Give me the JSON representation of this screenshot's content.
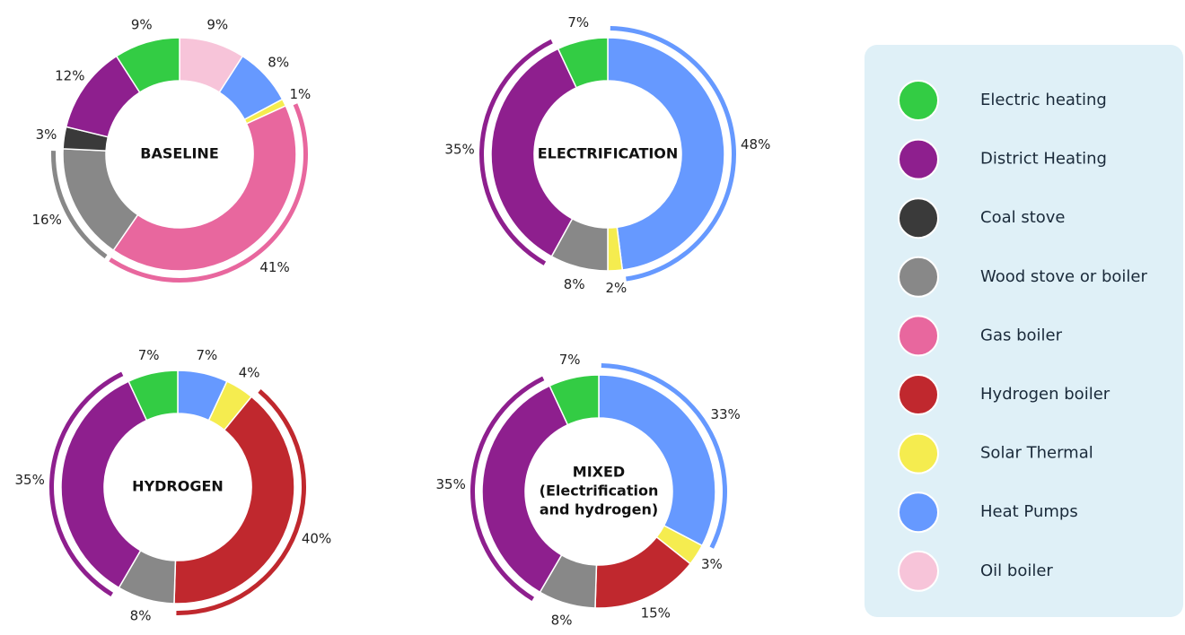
{
  "chart_data": [
    {
      "type": "pie",
      "title_lines": [
        "BASELINE"
      ],
      "categories": [
        "Oil boiler",
        "Heat Pumps",
        "Solar Thermal",
        "Gas boiler",
        "Wood stove or boiler",
        "Coal stove",
        "District Heating",
        "Electric heating"
      ],
      "values": [
        9,
        8,
        1,
        41,
        16,
        3,
        12,
        9
      ],
      "value_labels": [
        "9%",
        "8%",
        "1%",
        "41%",
        "16%",
        "3%",
        "12%",
        "9%"
      ],
      "colors": [
        "#f7c4d9",
        "#6699ff",
        "#f5ec4f",
        "#e8679e",
        "#888888",
        "#3a3a3a",
        "#8e1f8e",
        "#33cc44"
      ],
      "highlight": [
        "Gas boiler",
        "Wood stove or boiler"
      ]
    },
    {
      "type": "pie",
      "title_lines": [
        "ELECTRIFICATION"
      ],
      "categories": [
        "Heat Pumps",
        "Solar Thermal",
        "Wood stove or boiler",
        "District Heating",
        "Electric heating"
      ],
      "values": [
        48,
        2,
        8,
        35,
        7
      ],
      "value_labels": [
        "48%",
        "2%",
        "8%",
        "35%",
        "7%"
      ],
      "colors": [
        "#6699ff",
        "#f5ec4f",
        "#888888",
        "#8e1f8e",
        "#33cc44"
      ],
      "highlight": [
        "Heat Pumps",
        "District Heating"
      ]
    },
    {
      "type": "pie",
      "title_lines": [
        "HYDROGEN"
      ],
      "categories": [
        "Heat Pumps",
        "Solar Thermal",
        "Hydrogen boiler",
        "Wood stove or boiler",
        "District Heating",
        "Electric heating"
      ],
      "values": [
        7,
        4,
        40,
        8,
        35,
        7
      ],
      "value_labels": [
        "7%",
        "4%",
        "40%",
        "8%",
        "35%",
        "7%"
      ],
      "colors": [
        "#6699ff",
        "#f5ec4f",
        "#c0282e",
        "#888888",
        "#8e1f8e",
        "#33cc44"
      ],
      "highlight": [
        "Hydrogen boiler",
        "District Heating"
      ]
    },
    {
      "type": "pie",
      "title_lines": [
        "MIXED",
        "(Electrification",
        "and hydrogen)"
      ],
      "categories": [
        "Heat Pumps",
        "Solar Thermal",
        "Hydrogen boiler",
        "Wood stove or boiler",
        "District Heating",
        "Electric heating"
      ],
      "values": [
        33,
        3,
        15,
        8,
        35,
        7
      ],
      "value_labels": [
        "33%",
        "3%",
        "15%",
        "8%",
        "35%",
        "7%"
      ],
      "colors": [
        "#6699ff",
        "#f5ec4f",
        "#c0282e",
        "#888888",
        "#8e1f8e",
        "#33cc44"
      ],
      "highlight": [
        "Heat Pumps",
        "District Heating"
      ]
    }
  ],
  "legend": {
    "items": [
      {
        "label": "Electric heating",
        "color": "#33cc44"
      },
      {
        "label": "District Heating",
        "color": "#8e1f8e"
      },
      {
        "label": "Coal stove",
        "color": "#3a3a3a"
      },
      {
        "label": "Wood stove or boiler",
        "color": "#888888"
      },
      {
        "label": "Gas boiler",
        "color": "#e8679e"
      },
      {
        "label": "Hydrogen boiler",
        "color": "#c0282e"
      },
      {
        "label": "Solar Thermal",
        "color": "#f5ec4f"
      },
      {
        "label": "Heat Pumps",
        "color": "#6699ff"
      },
      {
        "label": "Oil boiler",
        "color": "#f7c4d9"
      }
    ]
  }
}
